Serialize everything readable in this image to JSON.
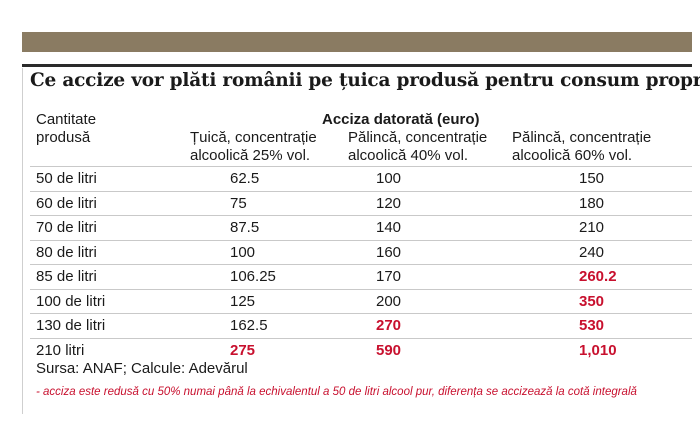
{
  "banner_color": "#8a7b62",
  "accent_color": "#c8102e",
  "title": "Ce accize vor plăti românii pe țuica produsă pentru consum propriu",
  "header": {
    "col0_line1": "Cantitate",
    "col0_line2": "produsă",
    "group": "Acciza datorată (euro)",
    "col1_line1": "Țuică, concentrație",
    "col1_line2": "alcoolică 25% vol.",
    "col2_line1": "Pălincă, concentrație",
    "col2_line2": "alcoolică 40% vol.",
    "col3_line1": "Pălincă, concentrație",
    "col3_line2": "alcoolică 60% vol."
  },
  "rows": [
    {
      "qty": "50 de litri",
      "v25": "62.5",
      "v40": "100",
      "v60": "150",
      "red25": false,
      "red40": false,
      "red60": false
    },
    {
      "qty": "60 de litri",
      "v25": "75",
      "v40": "120",
      "v60": "180",
      "red25": false,
      "red40": false,
      "red60": false
    },
    {
      "qty": "70 de litri",
      "v25": "87.5",
      "v40": "140",
      "v60": "210",
      "red25": false,
      "red40": false,
      "red60": false
    },
    {
      "qty": "80 de litri",
      "v25": "100",
      "v40": "160",
      "v60": "240",
      "red25": false,
      "red40": false,
      "red60": false
    },
    {
      "qty": "85 de litri",
      "v25": "106.25",
      "v40": "170",
      "v60": "260.2",
      "red25": false,
      "red40": false,
      "red60": true
    },
    {
      "qty": "100 de litri",
      "v25": "125",
      "v40": "200",
      "v60": "350",
      "red25": false,
      "red40": false,
      "red60": true
    },
    {
      "qty": "130 de litri",
      "v25": "162.5",
      "v40": "270",
      "v60": "530",
      "red25": false,
      "red40": true,
      "red60": true
    },
    {
      "qty": "210 litri",
      "v25": "275",
      "v40": "590",
      "v60": "1,010",
      "red25": true,
      "red40": true,
      "red60": true
    }
  ],
  "source": "Sursa: ANAF;  Calcule: Adevărul",
  "note": "- acciza este redusă cu 50% numai până la echivalentul a 50 de litri alcool pur, diferența se accizează la cotă integrală"
}
